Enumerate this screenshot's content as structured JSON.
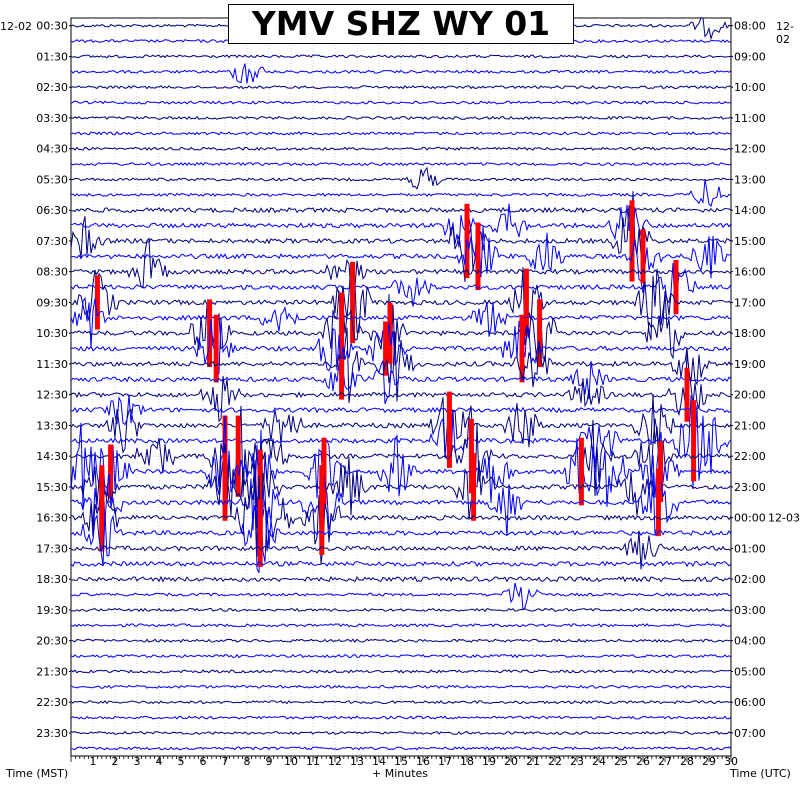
{
  "chart_data": {
    "type": "helicorder",
    "title": "YMV SHZ WY 01",
    "left_date": "12-02",
    "right_date": "12-02",
    "right_date_change": "12-03",
    "xlabel": "+ Minutes",
    "ylabel_left": "Time (MST)",
    "ylabel_right": "Time (UTC)",
    "xlim": [
      0,
      30
    ],
    "x_ticks": [
      "1",
      "2",
      "3",
      "4",
      "5",
      "6",
      "7",
      "8",
      "9",
      "10",
      "11",
      "12",
      "13",
      "14",
      "15",
      "16",
      "17",
      "18",
      "19",
      "20",
      "21",
      "22",
      "23",
      "24",
      "25",
      "26",
      "27",
      "28",
      "29",
      "30"
    ],
    "left_ticks": [
      "00:30",
      "01:30",
      "02:30",
      "03:30",
      "04:30",
      "05:30",
      "06:30",
      "07:30",
      "08:30",
      "09:30",
      "10:30",
      "11:30",
      "12:30",
      "13:30",
      "14:30",
      "15:30",
      "16:30",
      "17:30",
      "18:30",
      "19:30",
      "20:30",
      "21:30",
      "22:30",
      "23:30"
    ],
    "right_ticks": [
      "08:00",
      "09:00",
      "10:00",
      "11:00",
      "12:00",
      "13:00",
      "14:00",
      "15:00",
      "16:00",
      "17:00",
      "18:00",
      "19:00",
      "20:00",
      "21:00",
      "22:00",
      "23:00",
      "00:00",
      "01:00",
      "02:00",
      "03:00",
      "04:00",
      "05:00",
      "06:00",
      "07:00"
    ],
    "traces_per_hour": 2,
    "trace_colors": [
      "#000080",
      "#0000ff"
    ],
    "clip_color": "#ff0000",
    "grid": true,
    "events": [
      {
        "row": 0,
        "minute": 29,
        "amp": 0.6
      },
      {
        "row": 3,
        "minute": 8,
        "amp": 0.9
      },
      {
        "row": 10,
        "minute": 16,
        "amp": 0.7
      },
      {
        "row": 11,
        "minute": 29,
        "amp": 0.9
      },
      {
        "row": 13,
        "minute": 17.5,
        "amp": 1.2
      },
      {
        "row": 13,
        "minute": 25.3,
        "amp": 1.6
      },
      {
        "row": 13,
        "minute": 20,
        "amp": 1.0
      },
      {
        "row": 14,
        "minute": 18,
        "amp": 2.2,
        "clip": true
      },
      {
        "row": 14,
        "minute": 25.5,
        "amp": 2.4,
        "clip": true
      },
      {
        "row": 14,
        "minute": 0.6,
        "amp": 1.0
      },
      {
        "row": 15,
        "minute": 18.5,
        "amp": 2.0,
        "clip": true
      },
      {
        "row": 15,
        "minute": 21.5,
        "amp": 1.4
      },
      {
        "row": 15,
        "minute": 26,
        "amp": 1.6,
        "clip": true
      },
      {
        "row": 15,
        "minute": 29,
        "amp": 1.2
      },
      {
        "row": 16,
        "minute": 3.5,
        "amp": 1.4
      },
      {
        "row": 16,
        "minute": 12.5,
        "amp": 1.3
      },
      {
        "row": 17,
        "minute": 27.5,
        "amp": 1.6,
        "clip": true
      },
      {
        "row": 17,
        "minute": 15.5,
        "amp": 1.0
      },
      {
        "row": 18,
        "minute": 1.2,
        "amp": 1.6,
        "clip": true
      },
      {
        "row": 18,
        "minute": 12.8,
        "amp": 2.4,
        "clip": true
      },
      {
        "row": 18,
        "minute": 20.7,
        "amp": 2.0,
        "clip": true
      },
      {
        "row": 18,
        "minute": 26.5,
        "amp": 2.0
      },
      {
        "row": 19,
        "minute": 0.9,
        "amp": 1.3
      },
      {
        "row": 19,
        "minute": 9.5,
        "amp": 1.2
      },
      {
        "row": 19,
        "minute": 19,
        "amp": 1.0
      },
      {
        "row": 20,
        "minute": 6.3,
        "amp": 2.0,
        "clip": true
      },
      {
        "row": 20,
        "minute": 12.3,
        "amp": 2.4,
        "clip": true
      },
      {
        "row": 20,
        "minute": 14.5,
        "amp": 1.8,
        "clip": true
      },
      {
        "row": 20,
        "minute": 21.3,
        "amp": 2.0,
        "clip": true
      },
      {
        "row": 20,
        "minute": 27,
        "amp": 2.2
      },
      {
        "row": 21,
        "minute": 6.6,
        "amp": 2.0,
        "clip": true
      },
      {
        "row": 21,
        "minute": 12,
        "amp": 1.8
      },
      {
        "row": 21,
        "minute": 14.3,
        "amp": 1.6,
        "clip": true
      },
      {
        "row": 21,
        "minute": 20.5,
        "amp": 2.0,
        "clip": true
      },
      {
        "row": 22,
        "minute": 12.7,
        "amp": 2.0
      },
      {
        "row": 22,
        "minute": 14.8,
        "amp": 1.6
      },
      {
        "row": 22,
        "minute": 21,
        "amp": 1.6
      },
      {
        "row": 22,
        "minute": 28.2,
        "amp": 1.4
      },
      {
        "row": 23,
        "minute": 12.3,
        "amp": 1.2,
        "clip": true
      },
      {
        "row": 23,
        "minute": 14.4,
        "amp": 1.2
      },
      {
        "row": 23,
        "minute": 23.5,
        "amp": 1.0
      },
      {
        "row": 24,
        "minute": 6.8,
        "amp": 1.2
      },
      {
        "row": 24,
        "minute": 23.5,
        "amp": 1.0
      },
      {
        "row": 24,
        "minute": 28,
        "amp": 1.6,
        "clip": true
      },
      {
        "row": 25,
        "minute": 2.4,
        "amp": 1.0
      },
      {
        "row": 26,
        "minute": 17.2,
        "amp": 2.0,
        "clip": true
      },
      {
        "row": 26,
        "minute": 2.4,
        "amp": 1.4
      },
      {
        "row": 26,
        "minute": 9.6,
        "amp": 1.8
      },
      {
        "row": 26,
        "minute": 20.5,
        "amp": 1.6
      },
      {
        "row": 26,
        "minute": 26.5,
        "amp": 1.6
      },
      {
        "row": 27,
        "minute": 17.2,
        "amp": 1.6,
        "clip": true
      },
      {
        "row": 27,
        "minute": 28.3,
        "amp": 2.4,
        "clip": true
      },
      {
        "row": 27,
        "minute": 24,
        "amp": 1.8
      },
      {
        "row": 27,
        "minute": 29.2,
        "amp": 1.4
      },
      {
        "row": 28,
        "minute": 7,
        "amp": 2.4,
        "clip": true
      },
      {
        "row": 28,
        "minute": 7.6,
        "amp": 2.4,
        "clip": true
      },
      {
        "row": 28,
        "minute": 18.2,
        "amp": 2.2,
        "clip": true
      },
      {
        "row": 28,
        "minute": 3.8,
        "amp": 1.6
      },
      {
        "row": 28,
        "minute": 9,
        "amp": 1.8
      },
      {
        "row": 28,
        "minute": 23.8,
        "amp": 1.8
      },
      {
        "row": 28,
        "minute": 26.5,
        "amp": 1.8
      },
      {
        "row": 29,
        "minute": 1.8,
        "amp": 1.6,
        "clip": true
      },
      {
        "row": 29,
        "minute": 11.5,
        "amp": 2.0,
        "clip": true
      },
      {
        "row": 29,
        "minute": 23.2,
        "amp": 2.0,
        "clip": true
      },
      {
        "row": 29,
        "minute": 26.8,
        "amp": 1.8,
        "clip": true
      },
      {
        "row": 29,
        "minute": 0.5,
        "amp": 2.2
      },
      {
        "row": 29,
        "minute": 7,
        "amp": 2.2
      },
      {
        "row": 29,
        "minute": 8.6,
        "amp": 2.0
      },
      {
        "row": 29,
        "minute": 14.8,
        "amp": 1.6
      },
      {
        "row": 29,
        "minute": 19.2,
        "amp": 1.6
      },
      {
        "row": 29,
        "minute": 24.5,
        "amp": 2.0
      },
      {
        "row": 30,
        "minute": 7,
        "amp": 2.0,
        "clip": true
      },
      {
        "row": 30,
        "minute": 8.6,
        "amp": 2.2,
        "clip": true
      },
      {
        "row": 30,
        "minute": 18.3,
        "amp": 2.0,
        "clip": true
      },
      {
        "row": 30,
        "minute": 1.4,
        "amp": 1.6
      },
      {
        "row": 30,
        "minute": 12.6,
        "amp": 1.8
      },
      {
        "row": 30,
        "minute": 25.8,
        "amp": 1.6
      },
      {
        "row": 31,
        "minute": 1.4,
        "amp": 2.2,
        "clip": true
      },
      {
        "row": 31,
        "minute": 8.6,
        "amp": 2.2,
        "clip": true
      },
      {
        "row": 31,
        "minute": 11.4,
        "amp": 2.2,
        "clip": true
      },
      {
        "row": 31,
        "minute": 26.7,
        "amp": 2.0,
        "clip": true
      },
      {
        "row": 31,
        "minute": 19.8,
        "amp": 1.4
      },
      {
        "row": 32,
        "minute": 1.4,
        "amp": 2.0,
        "clip": true
      },
      {
        "row": 32,
        "minute": 8.4,
        "amp": 2.2
      },
      {
        "row": 32,
        "minute": 11.4,
        "amp": 2.2,
        "clip": true
      },
      {
        "row": 32,
        "minute": 9.2,
        "amp": 2.0
      },
      {
        "row": 33,
        "minute": 1.4,
        "amp": 1.8
      },
      {
        "row": 33,
        "minute": 8.6,
        "amp": 2.0,
        "clip": true
      },
      {
        "row": 34,
        "minute": 26,
        "amp": 1.0
      },
      {
        "row": 37,
        "minute": 20.5,
        "amp": 1.0
      }
    ]
  }
}
